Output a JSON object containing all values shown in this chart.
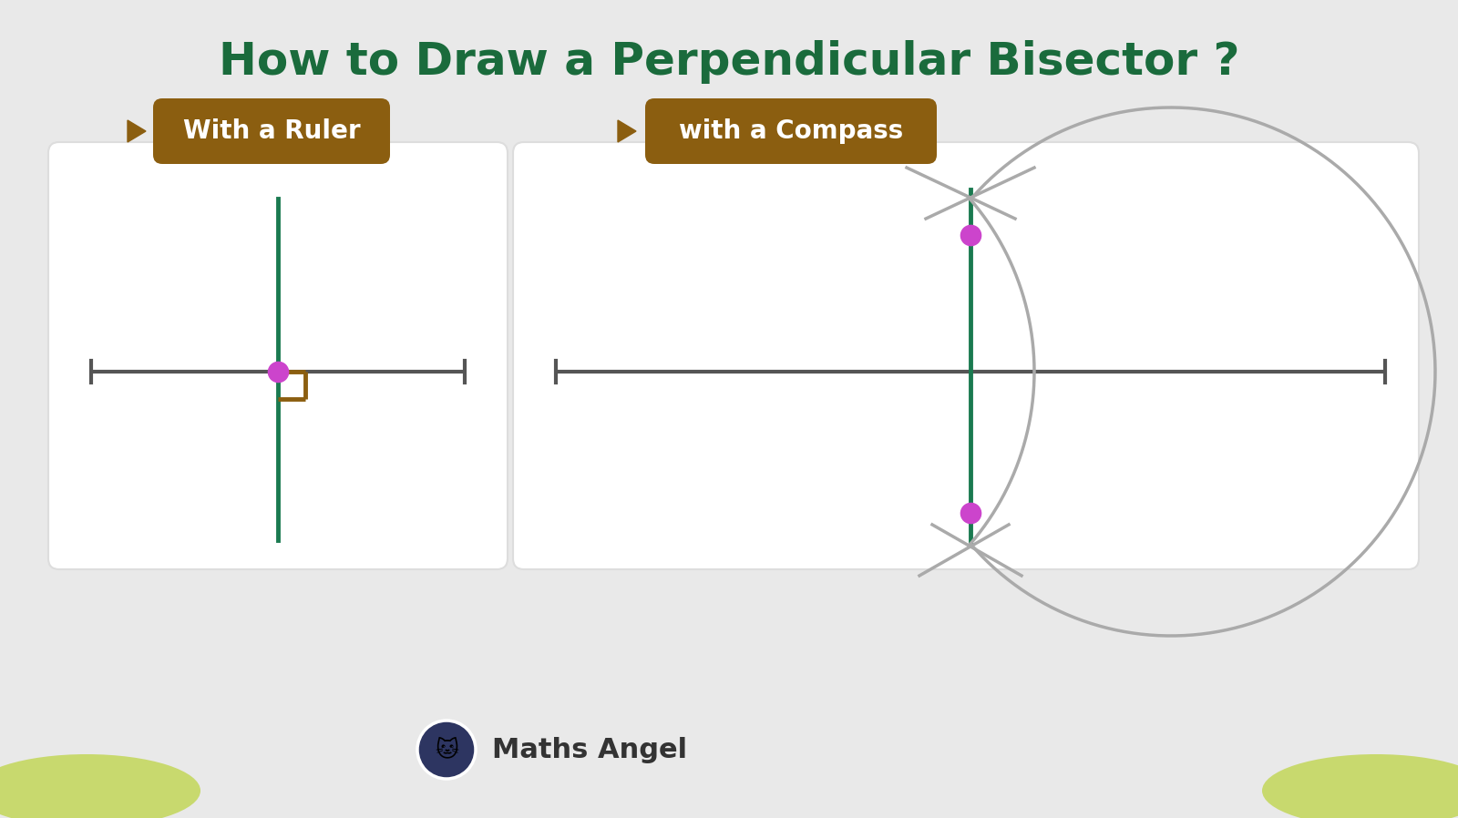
{
  "title": "How to Draw a Perpendicular Bisector ?",
  "title_color": "#1a6b3c",
  "title_fontsize": 36,
  "background_color": "#e9e9e9",
  "panel_color": "#ffffff",
  "panel_edge_color": "#dddddd",
  "btn1_text": "With a Ruler",
  "btn2_text": "with a Compass",
  "btn_color": "#8B5E10",
  "btn_text_color": "#ffffff",
  "arrow_color": "#8B5E10",
  "line_color": "#555555",
  "perp_line_color": "#1a7a50",
  "right_angle_color": "#8B5E10",
  "dot_color": "#cc44cc",
  "compass_arc_color": "#aaaaaa",
  "compass_dot_color": "#cc44cc",
  "watermark_text": "Maths Angel",
  "watermark_color": "#333333"
}
